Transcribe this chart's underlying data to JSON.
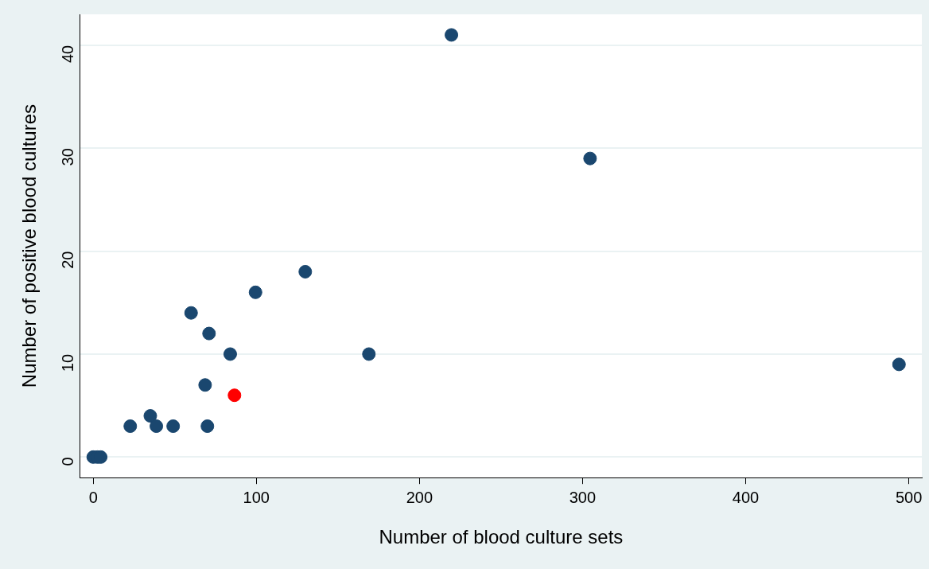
{
  "chart_data": {
    "type": "scatter",
    "xlabel": "Number of blood culture sets",
    "ylabel": "Number of positive blood cultures",
    "xlim": [
      -8,
      508
    ],
    "ylim": [
      -2,
      43
    ],
    "xticks": [
      0,
      100,
      200,
      300,
      400,
      500
    ],
    "yticks": [
      0,
      10,
      20,
      30,
      40
    ],
    "grid": "y",
    "legend": false,
    "marker": "circle",
    "series": [
      {
        "color": "#1a476f",
        "x": [
          0,
          2.6,
          4.6,
          22.7,
          35,
          38.7,
          49,
          60,
          70,
          68.6,
          71,
          84,
          99.5,
          130,
          169,
          219.6,
          304.6,
          494
        ],
        "values": [
          0,
          0,
          0,
          3,
          4,
          3,
          3,
          14,
          3,
          7,
          12,
          10,
          16,
          18,
          10,
          41,
          29,
          9
        ]
      },
      {
        "color": "#ff0000",
        "x": [
          86.6
        ],
        "values": [
          6
        ]
      }
    ]
  }
}
